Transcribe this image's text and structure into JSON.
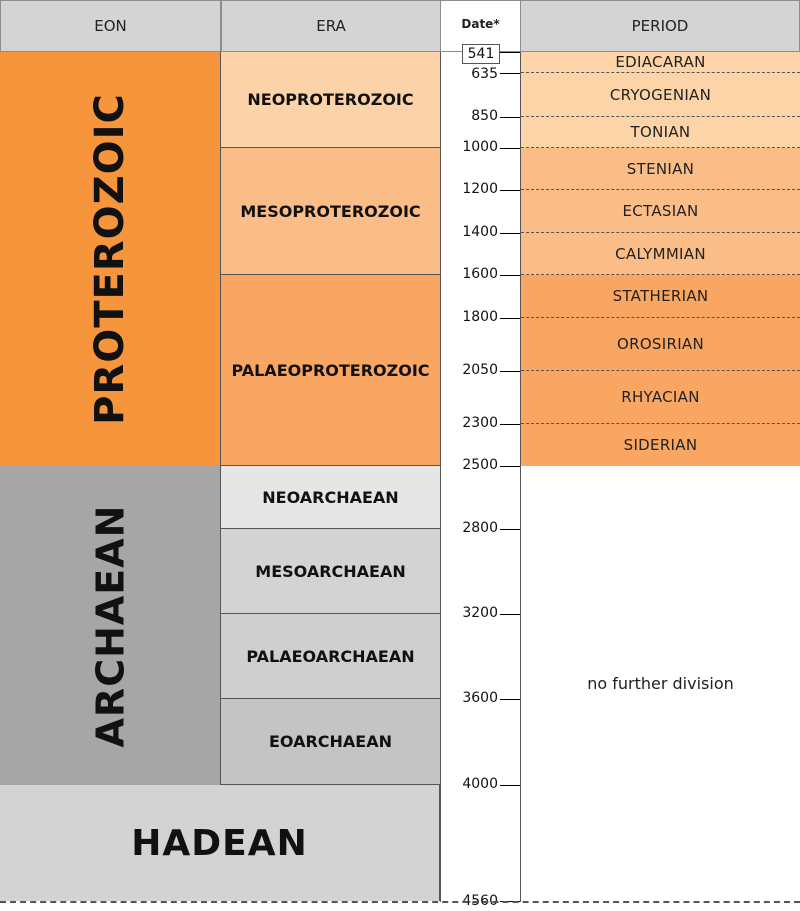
{
  "headers": {
    "eon": "EON",
    "era": "ERA",
    "date": "Date*",
    "period": "PERIOD"
  },
  "eons": [
    {
      "name": "PROTEROZOIC",
      "start": 541,
      "end": 2500,
      "color": "#f6953c"
    },
    {
      "name": "ARCHAEAN",
      "start": 2500,
      "end": 4000,
      "color": "#a6a6a6"
    },
    {
      "name": "HADEAN",
      "start": 4000,
      "end": 4560,
      "color": "#d3d3d3"
    }
  ],
  "eras": [
    {
      "name": "NEOPROTEROZOIC",
      "start": 541,
      "end": 1000,
      "color": "#fcd3a8"
    },
    {
      "name": "MESOPROTEROZOIC",
      "start": 1000,
      "end": 1600,
      "color": "#fbbd88"
    },
    {
      "name": "PALAEOPROTEROZOIC",
      "start": 1600,
      "end": 2500,
      "color": "#f8a662"
    },
    {
      "name": "NEOARCHAEAN",
      "start": 2500,
      "end": 2800,
      "color": "#e6e6e6"
    },
    {
      "name": "MESOARCHAEAN",
      "start": 2800,
      "end": 3200,
      "color": "#d3d3d3"
    },
    {
      "name": "PALAEOARCHAEAN",
      "start": 3200,
      "end": 3600,
      "color": "#cfcfcf"
    },
    {
      "name": "EOARCHAEAN",
      "start": 3600,
      "end": 4000,
      "color": "#c4c4c4"
    }
  ],
  "periods": [
    {
      "name": "EDIACARAN",
      "start": 541,
      "end": 635,
      "color": "#fdd4a8"
    },
    {
      "name": "CRYOGENIAN",
      "start": 635,
      "end": 850,
      "color": "#fdd4a8"
    },
    {
      "name": "TONIAN",
      "start": 850,
      "end": 1000,
      "color": "#fdd4a8"
    },
    {
      "name": "STENIAN",
      "start": 1000,
      "end": 1200,
      "color": "#fbbd88"
    },
    {
      "name": "ECTASIAN",
      "start": 1200,
      "end": 1400,
      "color": "#fbbd88"
    },
    {
      "name": "CALYMMIAN",
      "start": 1400,
      "end": 1600,
      "color": "#fbbd88"
    },
    {
      "name": "STATHERIAN",
      "start": 1600,
      "end": 1800,
      "color": "#f8a662"
    },
    {
      "name": "OROSIRIAN",
      "start": 1800,
      "end": 2050,
      "color": "#f8a662"
    },
    {
      "name": "RHYACIAN",
      "start": 2050,
      "end": 2300,
      "color": "#f8a662"
    },
    {
      "name": "SIDERIAN",
      "start": 2300,
      "end": 2500,
      "color": "#f8a662"
    }
  ],
  "no_division": {
    "label": "no further division",
    "start": 2500,
    "end": 4560
  },
  "dates": [
    "541",
    "635",
    "850",
    "1000",
    "1200",
    "1400",
    "1600",
    "1800",
    "2050",
    "2300",
    "2500",
    "2800",
    "3200",
    "3600",
    "4000",
    "4560"
  ]
}
